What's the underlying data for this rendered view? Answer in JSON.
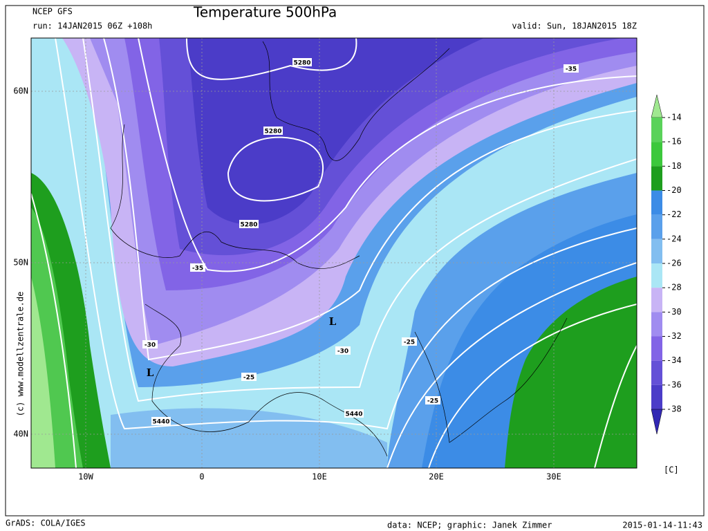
{
  "header": {
    "model": "NCEP GFS",
    "title": "Temperature 500hPa",
    "run": "run: 14JAN2015 06Z +108h",
    "valid": "valid: Sun, 18JAN2015 18Z"
  },
  "map": {
    "lat_labels": [
      "60N",
      "50N",
      "40N"
    ],
    "lon_labels": [
      "10W",
      "0",
      "10E",
      "20E",
      "30E"
    ],
    "contour_labels": [
      "5280",
      "5280",
      "5280",
      "5440",
      "5440",
      "-35",
      "-35",
      "-30",
      "-30",
      "-25",
      "-25",
      "-25"
    ],
    "lows": [
      "L",
      "L"
    ],
    "watermark": "(c) www.modellzentrale.de"
  },
  "colorbar": {
    "ticks": [
      -14,
      -16,
      -18,
      -20,
      -22,
      -24,
      -26,
      -28,
      -30,
      -32,
      -34,
      -36,
      -38
    ],
    "colors": [
      "#a0e890",
      "#5ad25a",
      "#3cc83c",
      "#1e9e1e",
      "#3c8ce6",
      "#5aa0eb",
      "#82bef0",
      "#aae6f5",
      "#c8b4f5",
      "#a08cf0",
      "#8264e6",
      "#6450d7",
      "#4b3cc8",
      "#3228b4"
    ],
    "unit": "[C]"
  },
  "footer": {
    "left": "GrADS: COLA/IGES",
    "credit": "data: NCEP; graphic: Janek Zimmer",
    "timestamp": "2015-01-14-11:43"
  }
}
